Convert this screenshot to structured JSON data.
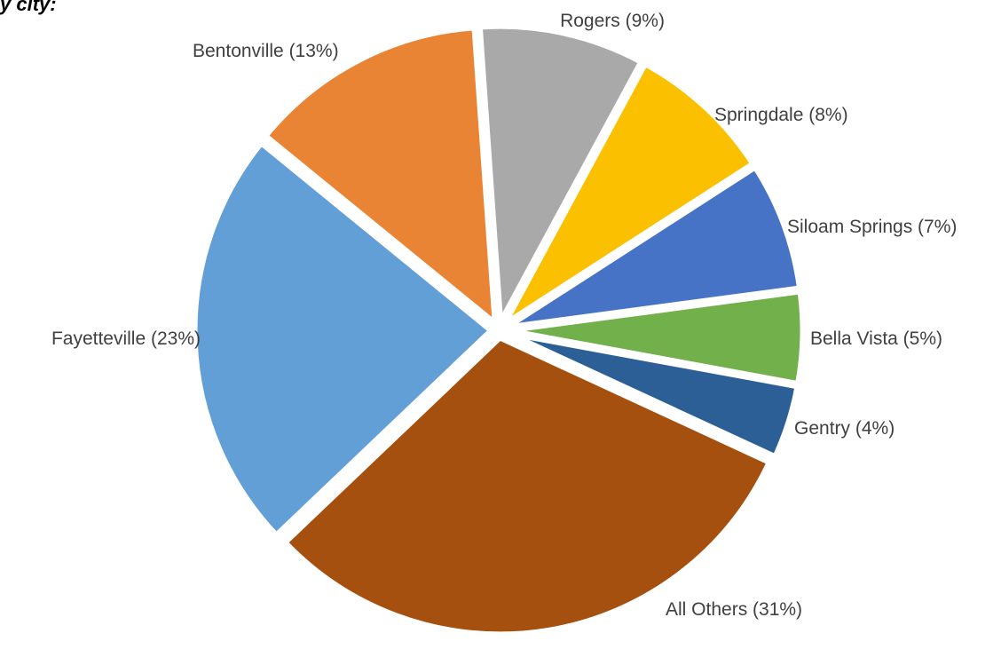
{
  "title_fragment": "y city:",
  "chart_data": {
    "type": "pie",
    "title": "",
    "slices": [
      {
        "label": "Rogers (9%)",
        "value": 9,
        "color": "#a9a9a9"
      },
      {
        "label": "Springdale (8%)",
        "value": 8,
        "color": "#fbc000"
      },
      {
        "label": "Siloam Springs (7%)",
        "value": 7,
        "color": "#4673c6"
      },
      {
        "label": "Bella Vista (5%)",
        "value": 5,
        "color": "#72b04c"
      },
      {
        "label": "Gentry (4%)",
        "value": 4,
        "color": "#2c5f96"
      },
      {
        "label": "All Others (31%)",
        "value": 31,
        "color": "#a5500f"
      },
      {
        "label": "Fayetteville (23%)",
        "value": 23,
        "color": "#629fd7"
      },
      {
        "label": "Bentonville (13%)",
        "value": 13,
        "color": "#ea8435"
      }
    ],
    "legend": "none",
    "data_labels": "outside"
  }
}
